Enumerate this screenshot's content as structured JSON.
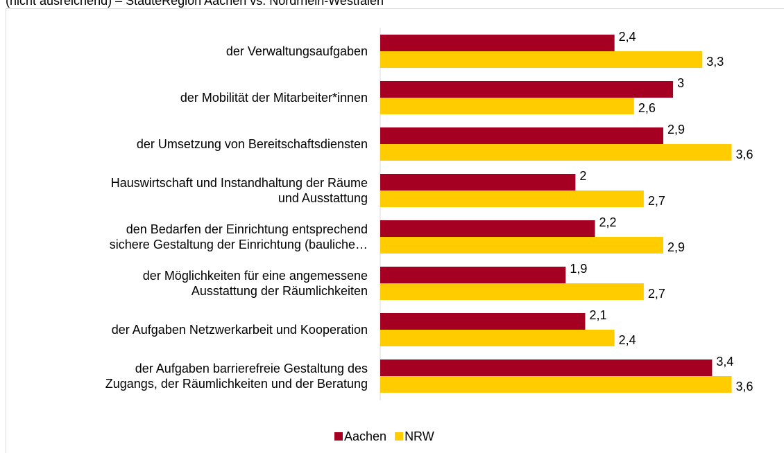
{
  "chart_data": {
    "type": "bar",
    "orientation": "horizontal",
    "title": "(nicht ausreichend) – StädteRegion Aachen vs. Nordrhein-Westfalen",
    "categories": [
      "der Verwaltungsaufgaben",
      "der Mobilität der Mitarbeiter*innen",
      "der Umsetzung von Bereitschaftsdiensten",
      "Hauswirtschaft und Instandhaltung der Räume\nund Ausstattung",
      "den Bedarfen der Einrichtung entsprechend\nsichere Gestaltung der Einrichtung (bauliche…",
      "der Möglichkeiten für eine angemessene\nAusstattung der Räumlichkeiten",
      "der Aufgaben Netzwerkarbeit und Kooperation",
      "der Aufgaben barrierefreie Gestaltung des\nZugangs, der Räumlichkeiten und der Beratung"
    ],
    "series": [
      {
        "name": "Aachen",
        "color": "#a50021",
        "values": [
          2.4,
          3,
          2.9,
          2,
          2.2,
          1.9,
          2.1,
          3.4
        ],
        "value_labels": [
          "2,4",
          "3",
          "2,9",
          "2",
          "2,2",
          "1,9",
          "2,1",
          "3,4"
        ]
      },
      {
        "name": "NRW",
        "color": "#ffcc00",
        "values": [
          3.3,
          2.6,
          3.6,
          2.7,
          2.9,
          2.7,
          2.4,
          3.6
        ],
        "value_labels": [
          "3,3",
          "2,6",
          "3,6",
          "2,7",
          "2,9",
          "2,7",
          "2,4",
          "3,6"
        ]
      }
    ],
    "xlim": [
      0,
      4
    ],
    "legend": "bottom"
  }
}
